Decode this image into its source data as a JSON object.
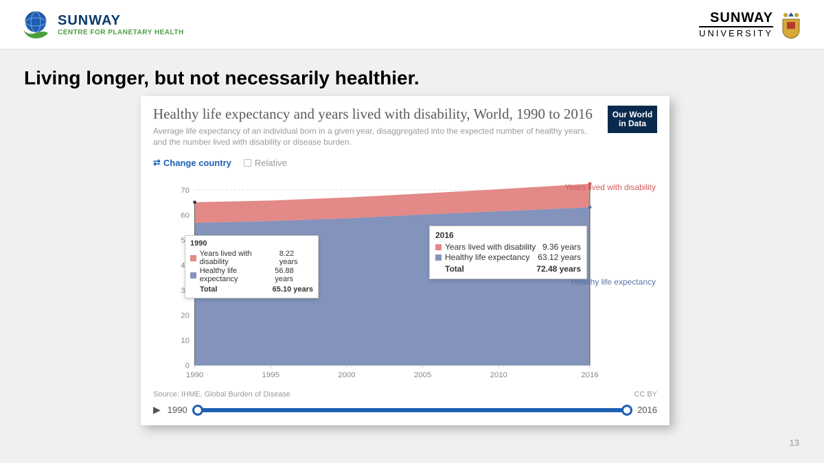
{
  "header": {
    "brand_title": "SUNWAY",
    "brand_sub": "CENTRE FOR PLANETARY HEALTH",
    "uni_title": "SUNWAY",
    "uni_sub": "UNIVERSITY"
  },
  "slide": {
    "title": "Living longer, but not necessarily healthier.",
    "page_number": "13"
  },
  "chart": {
    "type": "stacked-area",
    "title": "Healthy life expectancy and years lived with disability, World, 1990 to 2016",
    "description": "Average life expectancy of an individual born in a given year, disaggregated into the expected number of healthy years, and the number lived with disability or disease burden.",
    "badge": "Our World in Data",
    "controls": {
      "change_country": "Change country",
      "relative": "Relative"
    },
    "colors": {
      "healthy": "#8393bb",
      "disability": "#e38987",
      "healthy_label": "#5a74a8",
      "disability_label": "#d05c5c",
      "grid": "#d9d9d9",
      "background": "#ffffff",
      "accent": "#1d5fb4"
    },
    "x": {
      "min": 1990,
      "max": 2016,
      "ticks": [
        1990,
        1995,
        2000,
        2005,
        2010,
        2016
      ]
    },
    "y": {
      "min": 0,
      "max": 73,
      "ticks": [
        0,
        10,
        20,
        30,
        40,
        50,
        60,
        70
      ]
    },
    "years": [
      1990,
      1995,
      2000,
      2005,
      2010,
      2016
    ],
    "healthy": [
      56.88,
      57.6,
      58.7,
      60.2,
      61.5,
      63.12
    ],
    "total": [
      65.1,
      65.8,
      67.0,
      68.6,
      70.3,
      72.48
    ],
    "series_labels": {
      "disability": "Years lived with disability",
      "healthy": "Healthy life expectancy"
    },
    "tooltips": {
      "y1990": {
        "year": "1990",
        "rows": [
          {
            "label": "Years lived with disability",
            "value": "8.22 years",
            "color": "#e38987"
          },
          {
            "label": "Healthy life expectancy",
            "value": "56.88 years",
            "color": "#8393bb"
          }
        ],
        "total_label": "Total",
        "total_value": "65.10 years"
      },
      "y2016": {
        "year": "2016",
        "rows": [
          {
            "label": "Years lived with disability",
            "value": "9.36 years",
            "color": "#e38987"
          },
          {
            "label": "Healthy life expectancy",
            "value": "63.12 years",
            "color": "#8393bb"
          }
        ],
        "total_label": "Total",
        "total_value": "72.48 years"
      }
    },
    "source": "Source: IHME, Global Burden of Disease",
    "license": "CC BY",
    "timeline": {
      "start": "1990",
      "end": "2016"
    }
  }
}
